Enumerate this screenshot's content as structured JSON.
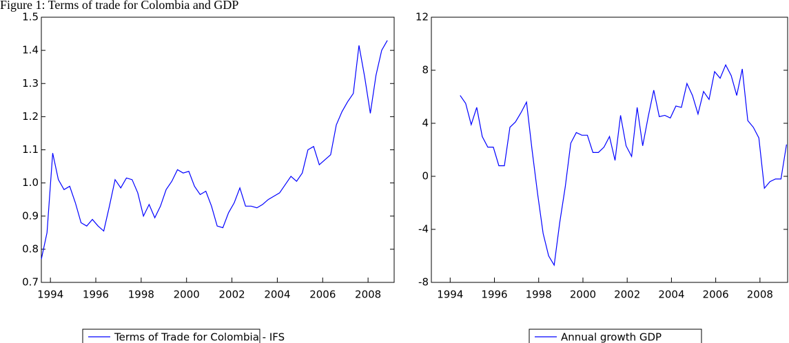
{
  "title": "Figure 1: Terms of trade for Colombia and GDP",
  "chart_data": [
    {
      "type": "line",
      "x": [
        1993.6,
        1993.85,
        1994.1,
        1994.35,
        1994.6,
        1994.85,
        1995.1,
        1995.35,
        1995.6,
        1995.85,
        1996.1,
        1996.35,
        1996.6,
        1996.85,
        1997.1,
        1997.35,
        1997.6,
        1997.85,
        1998.1,
        1998.35,
        1998.6,
        1998.85,
        1999.1,
        1999.35,
        1999.6,
        1999.85,
        2000.1,
        2000.35,
        2000.6,
        2000.85,
        2001.1,
        2001.35,
        2001.6,
        2001.85,
        2002.1,
        2002.35,
        2002.6,
        2002.85,
        2003.1,
        2003.35,
        2003.6,
        2003.85,
        2004.1,
        2004.35,
        2004.6,
        2004.85,
        2005.1,
        2005.35,
        2005.6,
        2005.85,
        2006.1,
        2006.35,
        2006.6,
        2006.85,
        2007.1,
        2007.35,
        2007.6,
        2007.85,
        2008.1,
        2008.35,
        2008.6,
        2008.85
      ],
      "series": [
        {
          "name": "Terms of Trade for Colombia - IFS",
          "color": "#0000ff",
          "values": [
            0.77,
            0.85,
            1.09,
            1.01,
            0.98,
            0.99,
            0.94,
            0.88,
            0.87,
            0.89,
            0.87,
            0.855,
            0.93,
            1.01,
            0.985,
            1.015,
            1.01,
            0.97,
            0.9,
            0.935,
            0.895,
            0.93,
            0.98,
            1.005,
            1.04,
            1.03,
            1.035,
            0.99,
            0.965,
            0.975,
            0.93,
            0.87,
            0.865,
            0.91,
            0.94,
            0.985,
            0.93,
            0.93,
            0.925,
            0.935,
            0.95,
            0.96,
            0.97,
            0.995,
            1.02,
            1.005,
            1.03,
            1.1,
            1.11,
            1.055,
            1.07,
            1.085,
            1.175,
            1.215,
            1.245,
            1.27,
            1.415,
            1.32,
            1.21,
            1.325,
            1.4,
            1.43
          ]
        }
      ],
      "xlim": [
        1993.6,
        2009.15
      ],
      "xticks": [
        1994,
        1996,
        1998,
        2000,
        2002,
        2004,
        2006,
        2008
      ],
      "ylim": [
        0.7,
        1.5
      ],
      "yticks": [
        0.7,
        0.8,
        0.9,
        {
          "value": 1,
          "label": "1.0"
        },
        1.1,
        1.2,
        1.3,
        1.4,
        1.5
      ]
    },
    {
      "type": "line",
      "x": [
        1994.45,
        1994.7,
        1994.95,
        1995.2,
        1995.45,
        1995.7,
        1995.95,
        1996.2,
        1996.45,
        1996.7,
        1996.95,
        1997.2,
        1997.45,
        1997.7,
        1997.95,
        1998.2,
        1998.45,
        1998.7,
        1998.95,
        1999.2,
        1999.45,
        1999.7,
        1999.95,
        2000.2,
        2000.45,
        2000.7,
        2000.95,
        2001.2,
        2001.45,
        2001.7,
        2001.95,
        2002.2,
        2002.45,
        2002.7,
        2002.95,
        2003.2,
        2003.45,
        2003.7,
        2003.95,
        2004.2,
        2004.45,
        2004.7,
        2004.95,
        2005.2,
        2005.45,
        2005.7,
        2005.95,
        2006.2,
        2006.45,
        2006.7,
        2006.95,
        2007.2,
        2007.45,
        2007.7,
        2007.95,
        2008.2,
        2008.45,
        2008.7,
        2008.95,
        2009.2
      ],
      "series": [
        {
          "name": "Annual growth GDP",
          "color": "#0000ff",
          "values": [
            6.1,
            5.5,
            3.9,
            5.2,
            3.0,
            2.2,
            2.2,
            0.8,
            0.8,
            3.7,
            4.1,
            4.8,
            5.6,
            2.0,
            -1.3,
            -4.3,
            -6.0,
            -6.7,
            -3.5,
            -0.8,
            2.5,
            3.3,
            3.1,
            3.1,
            1.8,
            1.8,
            2.2,
            3.0,
            1.2,
            4.6,
            2.3,
            1.5,
            5.2,
            2.3,
            4.5,
            6.5,
            4.5,
            4.6,
            4.4,
            5.3,
            5.2,
            7.0,
            6.1,
            4.7,
            6.4,
            5.8,
            7.9,
            7.4,
            8.4,
            7.6,
            6.1,
            8.1,
            4.2,
            3.7,
            2.9,
            -0.9,
            -0.4,
            -0.2,
            -0.2,
            2.4
          ]
        }
      ],
      "xlim": [
        1993.15,
        2009.25
      ],
      "xticks": [
        1994,
        1996,
        1998,
        2000,
        2002,
        2004,
        2006,
        2008
      ],
      "ylim": [
        -8,
        12
      ],
      "yticks": [
        -8,
        -4,
        0,
        4,
        8,
        12
      ]
    }
  ]
}
